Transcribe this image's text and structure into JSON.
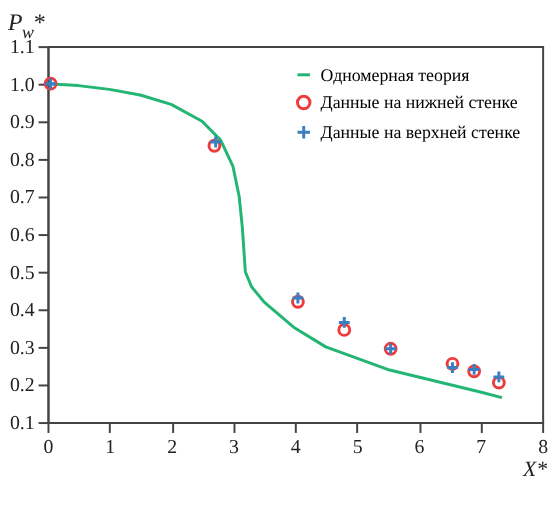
{
  "chart_data": {
    "type": "line",
    "xlabel": "X*",
    "ylabel": "P$_{w}$*",
    "xlim": [
      0,
      8
    ],
    "ylim": [
      0.1,
      1.1
    ],
    "xticks": [
      0,
      1,
      2,
      3,
      4,
      5,
      6,
      7,
      8
    ],
    "yticks": [
      0.1,
      0.2,
      0.3,
      0.4,
      0.5,
      0.6,
      0.7,
      0.8,
      0.9,
      {
        "value": 1.0,
        "label": "1.0"
      },
      1.1
    ],
    "legend": "top right",
    "grid": false,
    "series": [
      {
        "name": "Одномерная теория",
        "color": "#22b573",
        "type": "line",
        "marker": "none",
        "x": [
          0,
          0.5,
          1,
          1.5,
          2,
          2.5,
          2.8,
          3.0,
          3.1,
          3.15,
          3.2,
          3.3,
          3.5,
          4,
          4.5,
          5,
          5.5,
          6,
          6.5,
          7,
          7.35
        ],
        "values": [
          1.0,
          0.995,
          0.985,
          0.97,
          0.945,
          0.9,
          0.85,
          0.78,
          0.7,
          0.62,
          0.5,
          0.46,
          0.42,
          0.35,
          0.3,
          0.27,
          0.24,
          0.22,
          0.2,
          0.18,
          0.165
        ]
      },
      {
        "name": "Данные на нижней стенке",
        "color": "#ee3b3b",
        "type": "scatter",
        "marker": "circle",
        "x": [
          0.05,
          2.7,
          4.05,
          4.8,
          5.55,
          6.55,
          6.9,
          7.3
        ],
        "values": [
          1.0,
          0.835,
          0.42,
          0.345,
          0.295,
          0.255,
          0.235,
          0.205
        ]
      },
      {
        "name": "Данные на верхней стенке",
        "color": "#3a7fc4",
        "type": "scatter",
        "marker": "cross",
        "x": [
          0.05,
          2.72,
          4.05,
          4.8,
          5.55,
          6.55,
          6.9,
          7.3
        ],
        "values": [
          1.0,
          0.845,
          0.43,
          0.365,
          0.295,
          0.245,
          0.24,
          0.22
        ]
      }
    ]
  }
}
